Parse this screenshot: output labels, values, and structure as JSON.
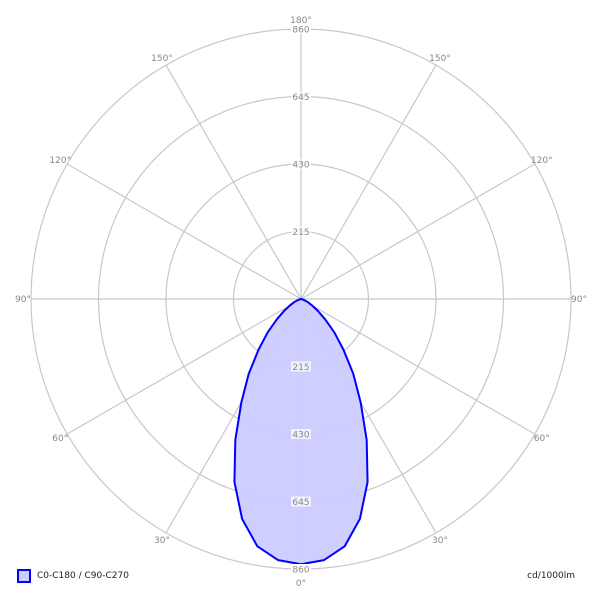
{
  "chart_data": {
    "type": "polar",
    "unit_label": "cd/1000lm",
    "radial_max": 860,
    "radial_ticks": [
      "215",
      "430",
      "645",
      "860"
    ],
    "angle_ticks": [
      "0°",
      "30°",
      "60°",
      "90°",
      "120°",
      "150°",
      "180°"
    ],
    "grid": true,
    "legend_placement": "bottom-left",
    "series": [
      {
        "name": "C0-C180 / C90-C270",
        "color": "#0000ff",
        "fill": "#ccccff",
        "angles": [
          0,
          5,
          10,
          15,
          20,
          25,
          30,
          35,
          40,
          45,
          50,
          55,
          60,
          65,
          70,
          80,
          90
        ],
        "values": [
          845,
          835,
          800,
          725,
          620,
          495,
          380,
          290,
          210,
          150,
          100,
          65,
          40,
          25,
          12,
          3,
          0
        ]
      }
    ]
  }
}
